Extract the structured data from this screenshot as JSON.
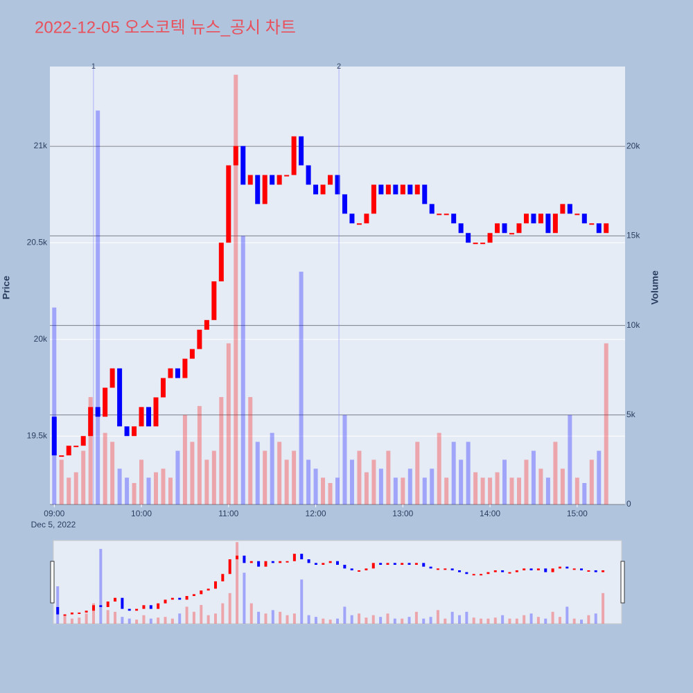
{
  "chart_data": {
    "type": "candlestick",
    "title": "2022-12-05 오스코텍 뉴스_공시 차트",
    "y_title": "Price",
    "y2_title": "Volume",
    "x_date_label": "Dec 5, 2022",
    "up_color": "#ff0000",
    "down_color": "#0000ff",
    "x": [
      "2022-12-05T09:00",
      "2022-12-05T09:05",
      "2022-12-05T09:10",
      "2022-12-05T09:15",
      "2022-12-05T09:20",
      "2022-12-05T09:25",
      "2022-12-05T09:30",
      "2022-12-05T09:35",
      "2022-12-05T09:40",
      "2022-12-05T09:45",
      "2022-12-05T09:50",
      "2022-12-05T09:55",
      "2022-12-05T10:00",
      "2022-12-05T10:05",
      "2022-12-05T10:10",
      "2022-12-05T10:15",
      "2022-12-05T10:20",
      "2022-12-05T10:25",
      "2022-12-05T10:30",
      "2022-12-05T10:35",
      "2022-12-05T10:40",
      "2022-12-05T10:45",
      "2022-12-05T10:50",
      "2022-12-05T10:55",
      "2022-12-05T11:00",
      "2022-12-05T11:05",
      "2022-12-05T11:10",
      "2022-12-05T11:15",
      "2022-12-05T11:20",
      "2022-12-05T11:25",
      "2022-12-05T11:30",
      "2022-12-05T11:35",
      "2022-12-05T11:40",
      "2022-12-05T11:45",
      "2022-12-05T11:50",
      "2022-12-05T11:55",
      "2022-12-05T12:00",
      "2022-12-05T12:05",
      "2022-12-05T12:10",
      "2022-12-05T12:15",
      "2022-12-05T12:20",
      "2022-12-05T12:25",
      "2022-12-05T12:30",
      "2022-12-05T12:35",
      "2022-12-05T12:40",
      "2022-12-05T12:45",
      "2022-12-05T12:50",
      "2022-12-05T12:55",
      "2022-12-05T13:00",
      "2022-12-05T13:05",
      "2022-12-05T13:10",
      "2022-12-05T13:15",
      "2022-12-05T13:20",
      "2022-12-05T13:25",
      "2022-12-05T13:30",
      "2022-12-05T13:35",
      "2022-12-05T13:40",
      "2022-12-05T13:45",
      "2022-12-05T13:50",
      "2022-12-05T13:55",
      "2022-12-05T14:00",
      "2022-12-05T14:05",
      "2022-12-05T14:10",
      "2022-12-05T14:15",
      "2022-12-05T14:20",
      "2022-12-05T14:25",
      "2022-12-05T14:30",
      "2022-12-05T14:35",
      "2022-12-05T14:40",
      "2022-12-05T14:45",
      "2022-12-05T14:50",
      "2022-12-05T14:55",
      "2022-12-05T15:00",
      "2022-12-05T15:05",
      "2022-12-05T15:10",
      "2022-12-05T15:15",
      "2022-12-05T15:20"
    ],
    "open": [
      19600,
      19400,
      19400,
      19450,
      19450,
      19500,
      19650,
      19600,
      19750,
      19850,
      19550,
      19500,
      19550,
      19650,
      19550,
      19700,
      19800,
      19850,
      19800,
      19900,
      19950,
      20050,
      20100,
      20300,
      20500,
      20900,
      21000,
      20800,
      20850,
      20700,
      20850,
      20800,
      20850,
      20850,
      21050,
      20900,
      20800,
      20750,
      20800,
      20850,
      20750,
      20650,
      20600,
      20600,
      20650,
      20800,
      20750,
      20800,
      20750,
      20800,
      20750,
      20800,
      20700,
      20650,
      20650,
      20650,
      20600,
      20550,
      20500,
      20500,
      20500,
      20550,
      20600,
      20550,
      20550,
      20600,
      20650,
      20600,
      20650,
      20550,
      20650,
      20700,
      20650,
      20650,
      20600,
      20600,
      20550
    ],
    "close": [
      19400,
      19400,
      19450,
      19450,
      19500,
      19650,
      19600,
      19750,
      19850,
      19550,
      19500,
      19550,
      19650,
      19550,
      19700,
      19800,
      19850,
      19800,
      19900,
      19950,
      20050,
      20100,
      20300,
      20500,
      20900,
      21000,
      20800,
      20850,
      20700,
      20850,
      20800,
      20850,
      20850,
      21050,
      20900,
      20800,
      20750,
      20800,
      20850,
      20750,
      20650,
      20600,
      20600,
      20650,
      20800,
      20750,
      20800,
      20750,
      20800,
      20750,
      20800,
      20700,
      20650,
      20650,
      20650,
      20600,
      20550,
      20500,
      20500,
      20500,
      20550,
      20600,
      20550,
      20550,
      20600,
      20650,
      20600,
      20650,
      20550,
      20650,
      20700,
      20650,
      20650,
      20600,
      20600,
      20550,
      20600
    ],
    "volume": [
      11000,
      2500,
      1500,
      1800,
      3000,
      6000,
      22000,
      4000,
      3500,
      2000,
      1500,
      1200,
      2500,
      1500,
      1800,
      2000,
      1500,
      3000,
      5000,
      3500,
      5500,
      2500,
      3000,
      6000,
      9000,
      24000,
      15000,
      6000,
      3500,
      3000,
      4000,
      3500,
      2500,
      3000,
      13000,
      2500,
      2000,
      1500,
      1200,
      1500,
      5000,
      2500,
      3000,
      1800,
      2500,
      2000,
      3000,
      1500,
      1500,
      2000,
      3500,
      1500,
      2000,
      4000,
      1500,
      3500,
      2500,
      3500,
      1800,
      1500,
      1500,
      1800,
      2500,
      1500,
      1500,
      2500,
      3000,
      2000,
      1500,
      3500,
      2000,
      5000,
      1500,
      1200,
      2500,
      3000,
      9000
    ],
    "xlim": [
      "2022-12-05T08:57",
      "2022-12-05T15:33"
    ],
    "xticks": [
      {
        "value": "2022-12-05T09:00",
        "label": "09:00"
      },
      {
        "value": "2022-12-05T10:00",
        "label": "10:00"
      },
      {
        "value": "2022-12-05T11:00",
        "label": "11:00"
      },
      {
        "value": "2022-12-05T12:00",
        "label": "12:00"
      },
      {
        "value": "2022-12-05T13:00",
        "label": "13:00"
      },
      {
        "value": "2022-12-05T14:00",
        "label": "14:00"
      },
      {
        "value": "2022-12-05T15:00",
        "label": "15:00"
      }
    ],
    "ylim": [
      19146,
      21411
    ],
    "yticks": [
      {
        "value": 19500,
        "label": "19.5k"
      },
      {
        "value": 20000,
        "label": "20k"
      },
      {
        "value": 20500,
        "label": "20.5k"
      },
      {
        "value": 21000,
        "label": "21k"
      }
    ],
    "y2lim": [
      0,
      24457
    ],
    "y2ticks": [
      0,
      {
        "value": 5000,
        "label": "5k"
      },
      {
        "value": 10000,
        "label": "10k"
      },
      {
        "value": 15000,
        "label": "15k"
      },
      {
        "value": 20000,
        "label": "20k"
      }
    ],
    "annotations": [
      {
        "x": "2022-12-05T09:27",
        "label": "1"
      },
      {
        "x": "2022-12-05T12:16",
        "label": "2"
      }
    ]
  }
}
